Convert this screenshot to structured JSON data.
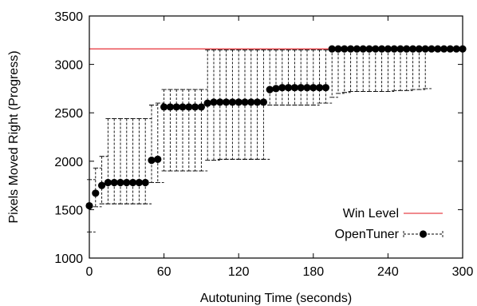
{
  "chart_data": {
    "type": "line",
    "title": "",
    "xlabel": "Autotuning Time (seconds)",
    "ylabel": "Pixels Moved Right (Progress)",
    "xlim": [
      0,
      300
    ],
    "ylim": [
      1000,
      3500
    ],
    "xticks": [
      "0",
      "60",
      "120",
      "180",
      "240",
      "300"
    ],
    "yticks": [
      "1000",
      "1500",
      "2000",
      "2500",
      "3000",
      "3500"
    ],
    "grid": false,
    "legend_position": "bottom-right",
    "win_level": {
      "name": "Win Level",
      "value": 3160,
      "color": "#e8434a"
    },
    "series": [
      {
        "name": "OpenTuner",
        "color": "#000000",
        "x": [
          0,
          5,
          10,
          15,
          20,
          25,
          30,
          35,
          40,
          45,
          50,
          55,
          60,
          65,
          70,
          75,
          80,
          85,
          90,
          95,
          100,
          105,
          110,
          115,
          120,
          125,
          130,
          135,
          140,
          145,
          150,
          155,
          160,
          165,
          170,
          175,
          180,
          185,
          190,
          195,
          200,
          205,
          210,
          215,
          220,
          225,
          230,
          235,
          240,
          245,
          250,
          255,
          260,
          265,
          270,
          275,
          280,
          285,
          290,
          295,
          300
        ],
        "values": [
          1540,
          1670,
          1750,
          1780,
          1780,
          1780,
          1780,
          1780,
          1780,
          1780,
          2010,
          2020,
          2560,
          2560,
          2560,
          2560,
          2560,
          2560,
          2560,
          2600,
          2610,
          2610,
          2610,
          2610,
          2610,
          2610,
          2610,
          2610,
          2610,
          2740,
          2750,
          2760,
          2760,
          2760,
          2760,
          2760,
          2760,
          2760,
          2760,
          3160,
          3160,
          3160,
          3160,
          3160,
          3160,
          3160,
          3160,
          3160,
          3160,
          3160,
          3160,
          3160,
          3160,
          3160,
          3160,
          3160,
          3160,
          3160,
          3160,
          3160,
          3160
        ],
        "error_upper": [
          1810,
          1930,
          2050,
          2440,
          2440,
          2440,
          2440,
          2440,
          2440,
          2440,
          2580,
          2600,
          2740,
          2740,
          2740,
          2740,
          2740,
          2740,
          2740,
          3150,
          3150,
          3150,
          3150,
          3150,
          3150,
          3150,
          3150,
          3150,
          3150,
          3150,
          3150,
          3150,
          3150,
          3150,
          3150,
          3150,
          3150,
          3150,
          3150,
          3160,
          3160,
          3160,
          3160,
          3160,
          3160,
          3160,
          3160,
          3160,
          3160,
          3160,
          3160,
          3160,
          3160,
          3160,
          3160,
          3160,
          3160,
          3160,
          3160,
          3160,
          3160
        ],
        "error_lower": [
          1270,
          1530,
          1560,
          1560,
          1560,
          1560,
          1560,
          1560,
          1560,
          1560,
          1780,
          1780,
          1900,
          1900,
          1900,
          1900,
          1900,
          1900,
          1900,
          2010,
          2010,
          2020,
          2020,
          2020,
          2020,
          2020,
          2020,
          2020,
          2020,
          2580,
          2580,
          2580,
          2580,
          2580,
          2580,
          2580,
          2580,
          2600,
          2600,
          2660,
          2700,
          2710,
          2720,
          2720,
          2720,
          2720,
          2720,
          2720,
          2720,
          2730,
          2730,
          2730,
          2740,
          2740,
          2750,
          3160,
          3160,
          3160,
          3160,
          3160,
          3160
        ],
        "marker": "circle"
      }
    ]
  }
}
